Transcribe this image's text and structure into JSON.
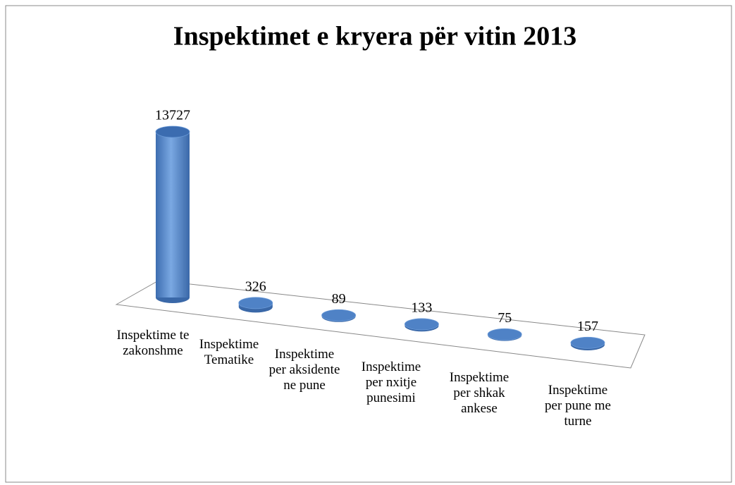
{
  "chart_data": {
    "type": "bar3d",
    "title": "Inspektimet e kryera për vitin 2013",
    "categories": [
      "Inspektime te zakonshme",
      "Inspektime Tematike",
      "Inspektime per aksidente ne pune",
      "Inspektime per nxitje punesimi",
      "Inspektime per shkak ankese",
      "Inspektime per pune me turne"
    ],
    "values": [
      13727,
      326,
      89,
      133,
      75,
      157
    ],
    "color": "#4a7ebb"
  }
}
